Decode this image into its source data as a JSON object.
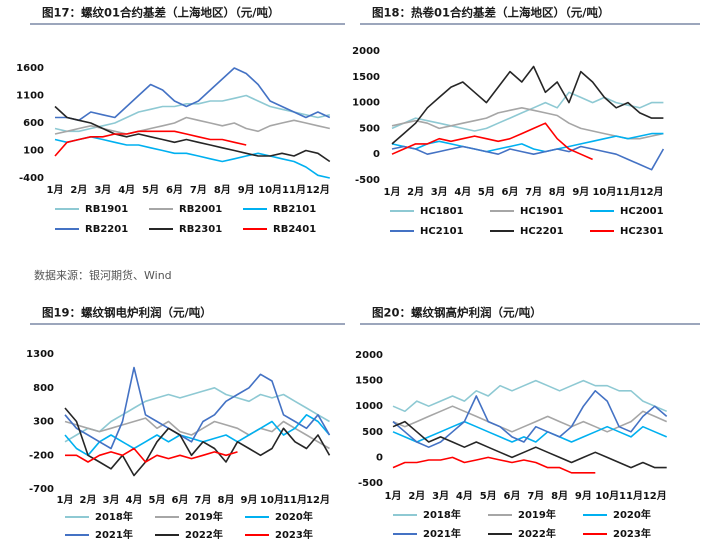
{
  "source": "数据来源：银河期货、Wind",
  "chart_data": [
    {
      "type": "line",
      "title": "图17：螺纹01合约基差（上海地区）（元/吨）",
      "x": [
        1,
        1.5,
        2,
        2.5,
        3,
        3.5,
        4,
        4.5,
        5,
        5.5,
        6,
        6.5,
        7,
        7.5,
        8,
        8.5,
        9,
        9.5,
        10,
        10.5,
        11,
        11.5,
        12,
        12.5
      ],
      "xlim": [
        1,
        13
      ],
      "xticks": [
        {
          "value": 1,
          "label": "1月"
        },
        {
          "value": 2,
          "label": "2月"
        },
        {
          "value": 3,
          "label": "3月"
        },
        {
          "value": 4,
          "label": "4月"
        },
        {
          "value": 5,
          "label": "5月"
        },
        {
          "value": 6,
          "label": "6月"
        },
        {
          "value": 7,
          "label": "7月"
        },
        {
          "value": 8,
          "label": "8月"
        },
        {
          "value": 9,
          "label": "9月"
        },
        {
          "value": 10,
          "label": "10月"
        },
        {
          "value": 11,
          "label": "11月"
        },
        {
          "value": 12,
          "label": "12月"
        }
      ],
      "ylim": [
        -400,
        1600
      ],
      "yticks": [
        -400,
        100,
        600,
        1100,
        1600
      ],
      "grid": false,
      "legend": "bottom",
      "series": [
        {
          "name": "RB1901",
          "color": "#8ec9d3",
          "values": [
            500,
            450,
            450,
            500,
            550,
            600,
            700,
            800,
            850,
            900,
            900,
            950,
            950,
            1000,
            1000,
            1050,
            1100,
            1000,
            900,
            850,
            800,
            750,
            700,
            750
          ]
        },
        {
          "name": "RB2001",
          "color": "#a6a6a6",
          "values": [
            400,
            450,
            500,
            550,
            500,
            450,
            400,
            450,
            500,
            550,
            600,
            700,
            650,
            600,
            550,
            600,
            500,
            450,
            550,
            600,
            650,
            600,
            550,
            500
          ]
        },
        {
          "name": "RB2101",
          "color": "#00b0f0",
          "values": [
            300,
            250,
            300,
            350,
            300,
            250,
            200,
            200,
            150,
            100,
            50,
            50,
            0,
            -50,
            -100,
            -50,
            0,
            50,
            0,
            -50,
            -100,
            -200,
            -350,
            -400
          ]
        },
        {
          "name": "RB2201",
          "color": "#4472c4",
          "values": [
            700,
            700,
            650,
            800,
            750,
            700,
            900,
            1100,
            1300,
            1200,
            1000,
            900,
            1000,
            1200,
            1400,
            1600,
            1500,
            1300,
            1000,
            900,
            800,
            700,
            800,
            700
          ]
        },
        {
          "name": "RB2301",
          "color": "#262626",
          "values": [
            900,
            700,
            650,
            600,
            500,
            400,
            350,
            400,
            350,
            300,
            250,
            300,
            250,
            200,
            150,
            100,
            50,
            0,
            0,
            50,
            0,
            100,
            50,
            -100
          ]
        },
        {
          "name": "RB2401",
          "color": "#ff0000",
          "values": [
            0,
            250,
            300,
            350,
            350,
            400,
            400,
            450,
            450,
            450,
            450,
            400,
            350,
            300,
            300,
            250,
            200,
            null,
            null,
            null,
            null,
            null,
            null,
            null
          ]
        }
      ]
    },
    {
      "type": "line",
      "title": "图18：热卷01合约基差（上海地区）（元/吨）",
      "x": [
        1,
        1.5,
        2,
        2.5,
        3,
        3.5,
        4,
        4.5,
        5,
        5.5,
        6,
        6.5,
        7,
        7.5,
        8,
        8.5,
        9,
        9.5,
        10,
        10.5,
        11,
        11.5,
        12,
        12.5
      ],
      "xlim": [
        1,
        13
      ],
      "xticks": [
        {
          "value": 1,
          "label": "1月"
        },
        {
          "value": 2,
          "label": "2月"
        },
        {
          "value": 3,
          "label": "3月"
        },
        {
          "value": 4,
          "label": "4月"
        },
        {
          "value": 5,
          "label": "5月"
        },
        {
          "value": 6,
          "label": "6月"
        },
        {
          "value": 7,
          "label": "7月"
        },
        {
          "value": 8,
          "label": "8月"
        },
        {
          "value": 9,
          "label": "9月"
        },
        {
          "value": 10,
          "label": "10月"
        },
        {
          "value": 11,
          "label": "11月"
        },
        {
          "value": 12,
          "label": "12月"
        }
      ],
      "ylim": [
        -500,
        2000
      ],
      "yticks": [
        -500,
        0,
        500,
        1000,
        1500,
        2000
      ],
      "grid": false,
      "legend": "bottom",
      "series": [
        {
          "name": "HC1801",
          "color": "#8ec9d3",
          "values": [
            500,
            600,
            700,
            650,
            600,
            550,
            500,
            450,
            500,
            600,
            700,
            800,
            900,
            1000,
            900,
            1200,
            1100,
            1000,
            1100,
            1000,
            950,
            900,
            1000,
            1000
          ]
        },
        {
          "name": "HC1901",
          "color": "#a6a6a6",
          "values": [
            550,
            600,
            650,
            600,
            500,
            550,
            600,
            650,
            700,
            800,
            850,
            900,
            850,
            800,
            750,
            600,
            500,
            450,
            400,
            350,
            300,
            300,
            350,
            400
          ]
        },
        {
          "name": "HC2001",
          "color": "#00b0f0",
          "values": [
            200,
            150,
            100,
            200,
            250,
            200,
            150,
            100,
            50,
            100,
            150,
            200,
            100,
            50,
            100,
            150,
            200,
            250,
            300,
            350,
            300,
            350,
            400,
            400
          ]
        },
        {
          "name": "HC2101",
          "color": "#4472c4",
          "values": [
            100,
            150,
            100,
            0,
            50,
            100,
            150,
            100,
            50,
            0,
            100,
            50,
            0,
            50,
            100,
            50,
            150,
            100,
            50,
            0,
            -100,
            -200,
            -300,
            100
          ]
        },
        {
          "name": "HC2201",
          "color": "#262626",
          "values": [
            200,
            400,
            600,
            900,
            1100,
            1300,
            1400,
            1200,
            1000,
            1300,
            1600,
            1400,
            1700,
            1200,
            1400,
            1000,
            1600,
            1400,
            1100,
            900,
            1000,
            800,
            700,
            700
          ]
        },
        {
          "name": "HC2301",
          "color": "#ff0000",
          "values": [
            0,
            100,
            200,
            200,
            300,
            250,
            300,
            350,
            300,
            250,
            300,
            400,
            500,
            600,
            300,
            100,
            0,
            -100,
            null,
            null,
            null,
            null,
            null,
            null
          ]
        }
      ]
    },
    {
      "type": "line",
      "title": "图19：螺纹钢电炉利润（元/吨）",
      "x": [
        1,
        1.5,
        2,
        2.5,
        3,
        3.5,
        4,
        4.5,
        5,
        5.5,
        6,
        6.5,
        7,
        7.5,
        8,
        8.5,
        9,
        9.5,
        10,
        10.5,
        11,
        11.5,
        12,
        12.5
      ],
      "xlim": [
        1,
        13
      ],
      "xticks": [
        {
          "value": 1,
          "label": "1月"
        },
        {
          "value": 2,
          "label": "2月"
        },
        {
          "value": 3,
          "label": "3月"
        },
        {
          "value": 4,
          "label": "4月"
        },
        {
          "value": 5,
          "label": "5月"
        },
        {
          "value": 6,
          "label": "6月"
        },
        {
          "value": 7,
          "label": "7月"
        },
        {
          "value": 8,
          "label": "8月"
        },
        {
          "value": 9,
          "label": "9月"
        },
        {
          "value": 10,
          "label": "10月"
        },
        {
          "value": 11,
          "label": "11月"
        },
        {
          "value": 12,
          "label": "12月"
        }
      ],
      "ylim": [
        -700,
        1300
      ],
      "yticks": [
        -700,
        -200,
        300,
        800,
        1300
      ],
      "grid": false,
      "legend": "bottom",
      "series": [
        {
          "name": "2018年",
          "color": "#8ec9d3",
          "values": [
            0,
            100,
            200,
            150,
            300,
            400,
            500,
            600,
            650,
            700,
            650,
            700,
            750,
            800,
            700,
            650,
            600,
            700,
            650,
            700,
            600,
            500,
            400,
            300
          ]
        },
        {
          "name": "2019年",
          "color": "#a6a6a6",
          "values": [
            300,
            250,
            200,
            150,
            200,
            250,
            300,
            350,
            200,
            300,
            150,
            100,
            200,
            300,
            250,
            200,
            100,
            200,
            150,
            300,
            200,
            100,
            0,
            -100
          ]
        },
        {
          "name": "2020年",
          "color": "#00b0f0",
          "values": [
            100,
            -100,
            -200,
            0,
            100,
            0,
            -100,
            0,
            100,
            0,
            100,
            50,
            0,
            50,
            100,
            0,
            100,
            200,
            300,
            100,
            200,
            400,
            300,
            100
          ]
        },
        {
          "name": "2021年",
          "color": "#4472c4",
          "values": [
            400,
            200,
            100,
            0,
            -100,
            300,
            1100,
            400,
            300,
            200,
            100,
            0,
            300,
            400,
            600,
            700,
            800,
            1000,
            900,
            400,
            300,
            200,
            400,
            100
          ]
        },
        {
          "name": "2022年",
          "color": "#262626",
          "values": [
            500,
            300,
            -200,
            -300,
            -400,
            -200,
            -500,
            -300,
            0,
            200,
            100,
            -200,
            0,
            -100,
            -300,
            0,
            -100,
            -200,
            -100,
            200,
            0,
            -100,
            100,
            -200
          ]
        },
        {
          "name": "2023年",
          "color": "#ff0000",
          "values": [
            -200,
            -200,
            -300,
            -200,
            -150,
            -200,
            -100,
            -300,
            -200,
            -250,
            -200,
            -250,
            -200,
            -150,
            -200,
            -150,
            null,
            null,
            null,
            null,
            null,
            null,
            null,
            null
          ]
        }
      ]
    },
    {
      "type": "line",
      "title": "图20：螺纹钢高炉利润（元/吨）",
      "x": [
        1,
        1.5,
        2,
        2.5,
        3,
        3.5,
        4,
        4.5,
        5,
        5.5,
        6,
        6.5,
        7,
        7.5,
        8,
        8.5,
        9,
        9.5,
        10,
        10.5,
        11,
        11.5,
        12,
        12.5
      ],
      "xlim": [
        1,
        13
      ],
      "xticks": [
        {
          "value": 1,
          "label": "1月"
        },
        {
          "value": 2,
          "label": "2月"
        },
        {
          "value": 3,
          "label": "3月"
        },
        {
          "value": 4,
          "label": "4月"
        },
        {
          "value": 5,
          "label": "5月"
        },
        {
          "value": 6,
          "label": "6月"
        },
        {
          "value": 7,
          "label": "7月"
        },
        {
          "value": 8,
          "label": "8月"
        },
        {
          "value": 9,
          "label": "9月"
        },
        {
          "value": 10,
          "label": "10月"
        },
        {
          "value": 11,
          "label": "11月"
        },
        {
          "value": 12,
          "label": "12月"
        }
      ],
      "ylim": [
        -500,
        2000
      ],
      "yticks": [
        -500,
        0,
        500,
        1000,
        1500,
        2000
      ],
      "grid": false,
      "legend": "bottom",
      "series": [
        {
          "name": "2018年",
          "color": "#8ec9d3",
          "values": [
            1000,
            900,
            1100,
            1000,
            1100,
            1200,
            1100,
            1300,
            1200,
            1400,
            1300,
            1400,
            1500,
            1400,
            1300,
            1400,
            1500,
            1400,
            1400,
            1300,
            1300,
            1100,
            1000,
            900
          ]
        },
        {
          "name": "2019年",
          "color": "#a6a6a6",
          "values": [
            700,
            600,
            700,
            800,
            900,
            1000,
            900,
            800,
            700,
            600,
            500,
            600,
            700,
            800,
            700,
            600,
            700,
            600,
            500,
            600,
            700,
            900,
            800,
            700
          ]
        },
        {
          "name": "2020年",
          "color": "#00b0f0",
          "values": [
            500,
            400,
            300,
            400,
            500,
            600,
            700,
            600,
            500,
            400,
            300,
            400,
            300,
            500,
            400,
            300,
            400,
            500,
            600,
            500,
            400,
            600,
            500,
            400
          ]
        },
        {
          "name": "2021年",
          "color": "#4472c4",
          "values": [
            700,
            500,
            300,
            200,
            300,
            500,
            700,
            1200,
            700,
            600,
            400,
            300,
            600,
            500,
            400,
            600,
            1000,
            1300,
            1100,
            600,
            500,
            800,
            1000,
            800
          ]
        },
        {
          "name": "2022年",
          "color": "#262626",
          "values": [
            600,
            700,
            500,
            300,
            400,
            300,
            200,
            300,
            200,
            100,
            0,
            100,
            200,
            100,
            0,
            -100,
            0,
            100,
            0,
            -100,
            -200,
            -100,
            -200,
            -200
          ]
        },
        {
          "name": "2023年",
          "color": "#ff0000",
          "values": [
            -200,
            -100,
            -100,
            -50,
            -50,
            0,
            -100,
            -50,
            0,
            -50,
            -100,
            -50,
            -100,
            -200,
            -200,
            -300,
            -300,
            -300,
            null,
            null,
            null,
            null,
            null,
            null
          ]
        }
      ]
    }
  ]
}
